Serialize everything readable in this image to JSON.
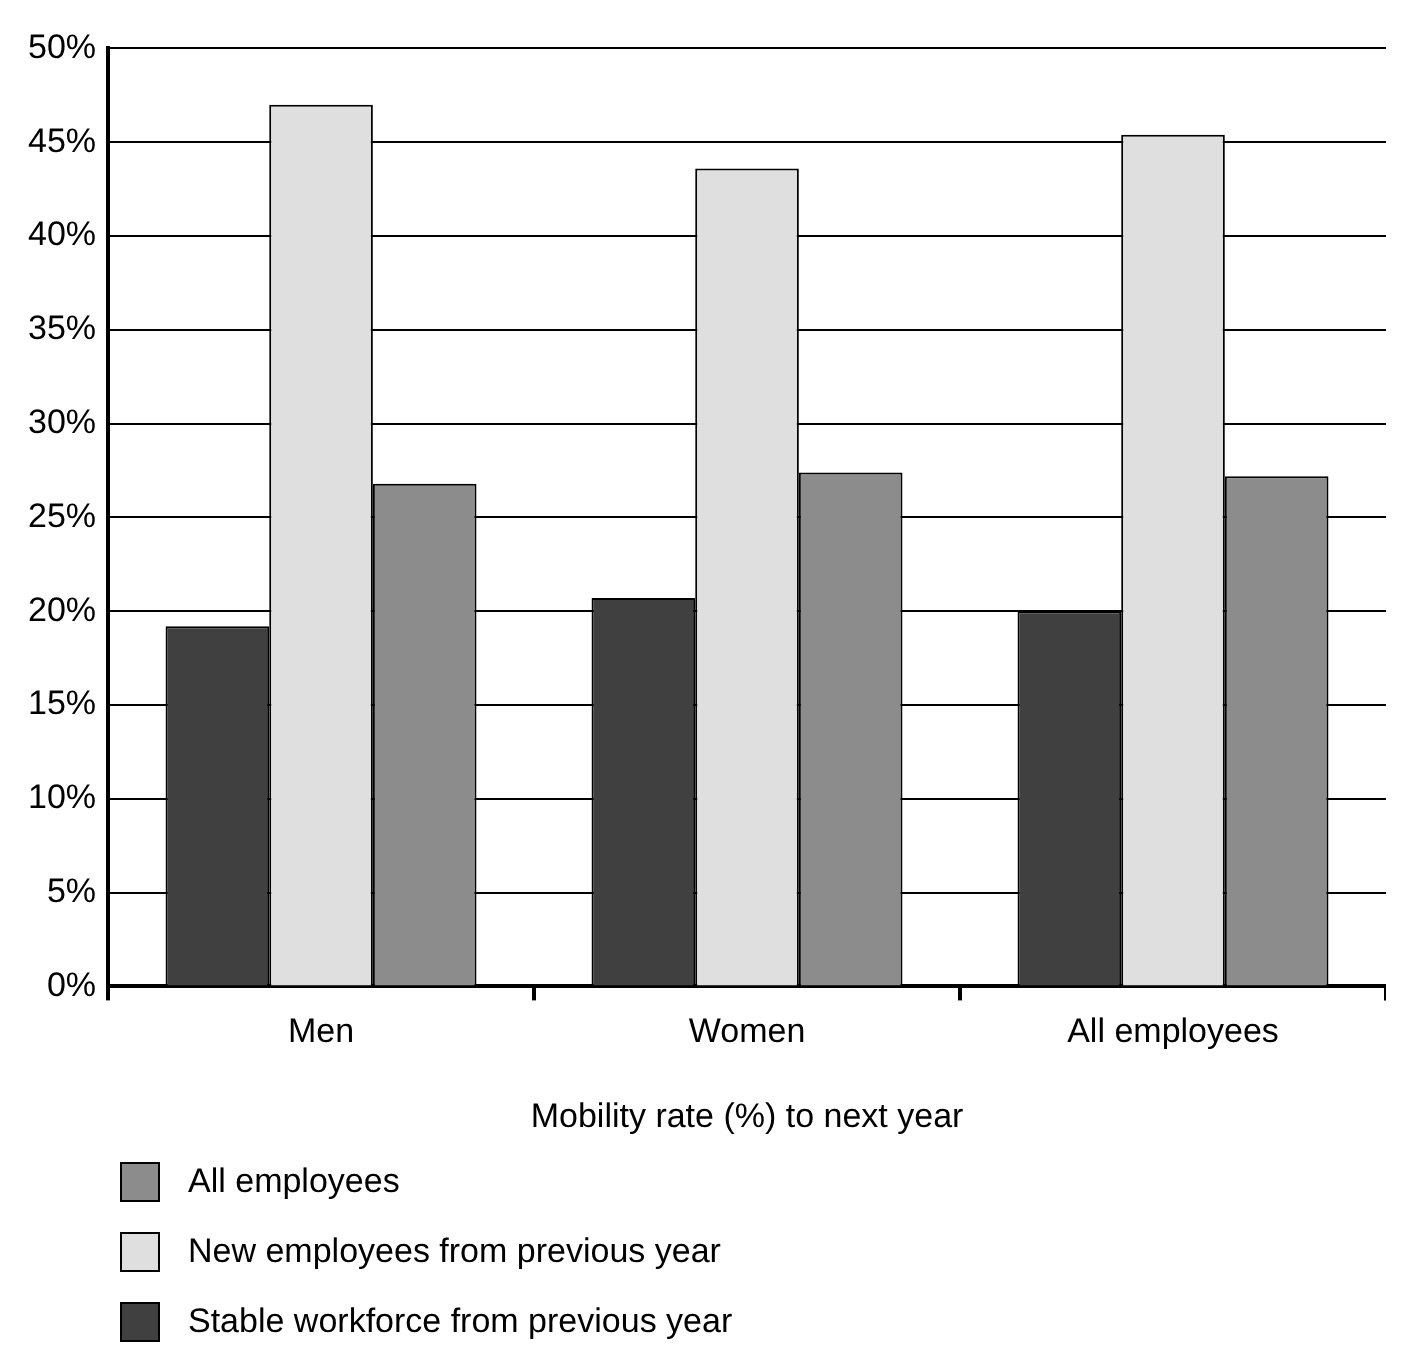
{
  "chart_data": {
    "type": "bar",
    "xlabel": "Mobility rate (%) to next year",
    "categories": [
      "Men",
      "Women",
      "All employees"
    ],
    "series": [
      {
        "name": "Stable workforce from previous year",
        "color": "#404040",
        "values": [
          19.2,
          20.7,
          20.0
        ]
      },
      {
        "name": "New employees from previous year",
        "color": "#dfdfdf",
        "values": [
          47.0,
          43.6,
          45.4
        ]
      },
      {
        "name": "All employees",
        "color": "#8c8c8c",
        "values": [
          26.8,
          27.4,
          27.2
        ]
      }
    ],
    "ylim": [
      0,
      50
    ],
    "yticks": [
      {
        "value": 0,
        "label": "0%"
      },
      {
        "value": 5,
        "label": "5%"
      },
      {
        "value": 10,
        "label": "10%"
      },
      {
        "value": 15,
        "label": "15%"
      },
      {
        "value": 20,
        "label": "20%"
      },
      {
        "value": 25,
        "label": "25%"
      },
      {
        "value": 30,
        "label": "30%"
      },
      {
        "value": 35,
        "label": "35%"
      },
      {
        "value": 40,
        "label": "40%"
      },
      {
        "value": 45,
        "label": "45%"
      },
      {
        "value": 50,
        "label": "50%"
      }
    ],
    "grid": "y",
    "legend": "bottom"
  }
}
